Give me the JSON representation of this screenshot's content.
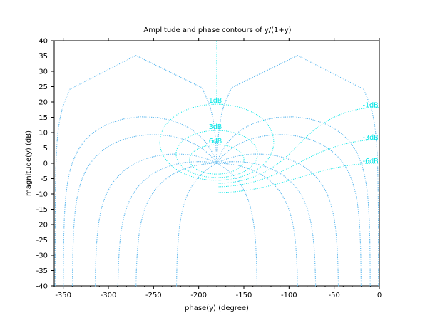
{
  "chart_data": {
    "type": "line",
    "title": "Amplitude and phase contours of y/(1+y)",
    "xlabel": "phase(y) (degree)",
    "ylabel": "magnitude(y) (dB)",
    "xlim": [
      -360,
      0
    ],
    "ylim": [
      -40,
      40
    ],
    "xticks": [
      -350,
      -300,
      -250,
      -200,
      -150,
      -100,
      -50,
      0
    ],
    "yticks": [
      -40,
      -35,
      -30,
      -25,
      -20,
      -15,
      -10,
      -5,
      0,
      5,
      10,
      15,
      20,
      25,
      30,
      35,
      40
    ],
    "grid": false,
    "colors": {
      "magnitude_contours": "#00e6e6",
      "phase_contours": "#5fb9ee",
      "axis": "#000000"
    },
    "magnitude_contours_db": [
      1,
      3,
      6,
      -1,
      -3,
      -6
    ],
    "contour_labels": [
      "1dB",
      "3dB",
      "6dB",
      "-1dB",
      "-3dB",
      "-6dB"
    ],
    "phase_contours_deg": [
      -1,
      -10,
      -20,
      -45,
      -70,
      -90,
      -135
    ]
  }
}
